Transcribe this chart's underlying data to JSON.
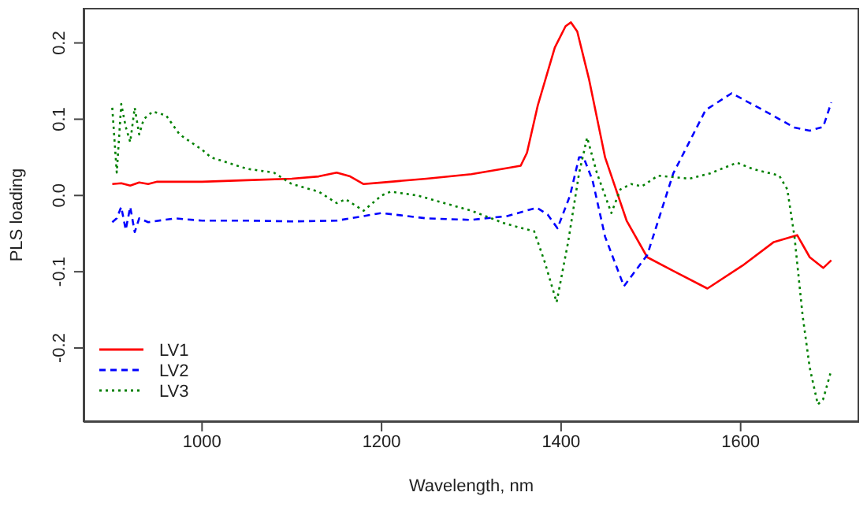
{
  "chart_data": {
    "type": "line",
    "xlabel": "Wavelength, nm",
    "ylabel": "PLS loading",
    "xlim": [
      868,
      1732
    ],
    "xticks": [
      1000,
      1200,
      1400,
      1600
    ],
    "ylim": [
      -0.297,
      0.246
    ],
    "yticks": [
      -0.2,
      -0.1,
      {
        "value": 0,
        "label": "0.0"
      },
      0.1,
      0.2
    ],
    "grid": false,
    "legend": "bottom left",
    "series": [
      {
        "name": "LV1",
        "color": "#ff0000",
        "line_style": "solid",
        "x": [
          900,
          910,
          920,
          930,
          940,
          950,
          1000,
          1050,
          1100,
          1130,
          1150,
          1165,
          1180,
          1200,
          1250,
          1300,
          1340,
          1355,
          1362,
          1374,
          1393,
          1405,
          1411,
          1418,
          1431,
          1449,
          1473,
          1496,
          1525,
          1563,
          1602,
          1637,
          1663,
          1677,
          1692,
          1701
        ],
        "values": [
          0.015,
          0.016,
          0.013,
          0.017,
          0.015,
          0.018,
          0.018,
          0.02,
          0.022,
          0.025,
          0.03,
          0.025,
          0.015,
          0.017,
          0.022,
          0.028,
          0.036,
          0.039,
          0.056,
          0.118,
          0.194,
          0.222,
          0.227,
          0.215,
          0.153,
          0.05,
          -0.033,
          -0.081,
          -0.099,
          -0.122,
          -0.092,
          -0.061,
          -0.052,
          -0.081,
          -0.095,
          -0.085
        ]
      },
      {
        "name": "LV2",
        "color": "#0000ff",
        "line_style": "dashed",
        "x": [
          900,
          905,
          910,
          915,
          920,
          925,
          930,
          940,
          970,
          1000,
          1050,
          1100,
          1150,
          1200,
          1250,
          1300,
          1340,
          1373,
          1385,
          1396,
          1410,
          1420,
          1425,
          1435,
          1449,
          1470,
          1496,
          1525,
          1561,
          1590,
          1625,
          1660,
          1677,
          1692,
          1701
        ],
        "values": [
          -0.035,
          -0.03,
          -0.015,
          -0.045,
          -0.015,
          -0.048,
          -0.03,
          -0.035,
          -0.03,
          -0.033,
          -0.033,
          -0.034,
          -0.033,
          -0.023,
          -0.03,
          -0.032,
          -0.027,
          -0.016,
          -0.025,
          -0.043,
          0.0,
          0.05,
          0.05,
          0.02,
          -0.054,
          -0.119,
          -0.078,
          0.029,
          0.112,
          0.134,
          0.112,
          0.089,
          0.085,
          0.09,
          0.122
        ]
      },
      {
        "name": "LV3",
        "color": "#008000",
        "line_style": "dotted",
        "x": [
          900,
          905,
          910,
          915,
          920,
          925,
          930,
          935,
          945,
          960,
          975,
          1000,
          1010,
          1050,
          1080,
          1100,
          1130,
          1150,
          1160,
          1180,
          1200,
          1210,
          1240,
          1270,
          1300,
          1338,
          1370,
          1382,
          1395,
          1408,
          1420,
          1429,
          1440,
          1456,
          1466,
          1478,
          1490,
          1508,
          1543,
          1566,
          1596,
          1613,
          1643,
          1652,
          1660,
          1669,
          1677,
          1686,
          1692,
          1701
        ],
        "values": [
          0.115,
          0.03,
          0.12,
          0.09,
          0.07,
          0.115,
          0.08,
          0.1,
          0.11,
          0.105,
          0.08,
          0.06,
          0.05,
          0.035,
          0.03,
          0.015,
          0.005,
          -0.01,
          -0.005,
          -0.02,
          0.0,
          0.005,
          0.0,
          -0.01,
          -0.02,
          -0.037,
          -0.047,
          -0.088,
          -0.14,
          -0.06,
          0.029,
          0.076,
          0.029,
          -0.023,
          0.008,
          0.015,
          0.012,
          0.026,
          0.022,
          0.029,
          0.043,
          0.035,
          0.026,
          0.008,
          -0.054,
          -0.157,
          -0.226,
          -0.274,
          -0.267,
          -0.229
        ]
      }
    ]
  }
}
